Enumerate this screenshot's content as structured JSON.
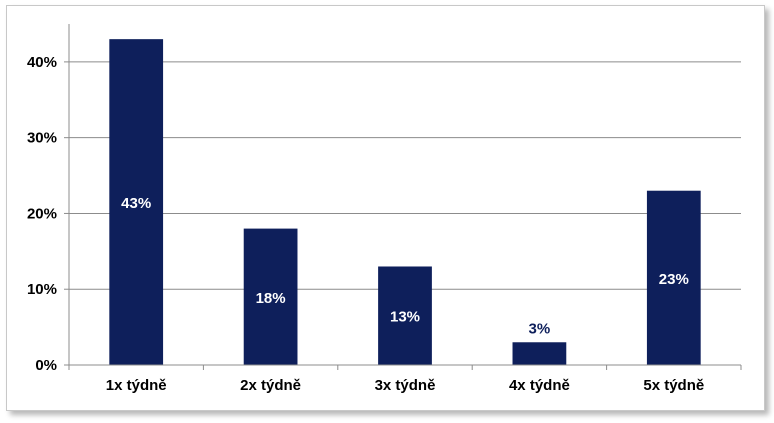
{
  "chart_data": {
    "type": "bar",
    "categories": [
      "1x týdně",
      "2x týdně",
      "3x týdně",
      "4x týdně",
      "5x týdně"
    ],
    "values": [
      43,
      18,
      13,
      3,
      23
    ],
    "data_labels": [
      "43%",
      "18%",
      "13%",
      "3%",
      "23%"
    ],
    "ylim": [
      0,
      45
    ],
    "yticks": [
      0,
      10,
      20,
      30,
      40
    ],
    "ytick_labels": [
      "0%",
      "10%",
      "20%",
      "30%",
      "40%"
    ],
    "title": "",
    "xlabel": "",
    "ylabel": "",
    "grid": true,
    "legend": "none",
    "bar_color": "#0e1f5b",
    "grid_color": "#8c8c8c",
    "label_inside_color": "#ffffff",
    "label_outside_color": "#0e1f5b"
  }
}
